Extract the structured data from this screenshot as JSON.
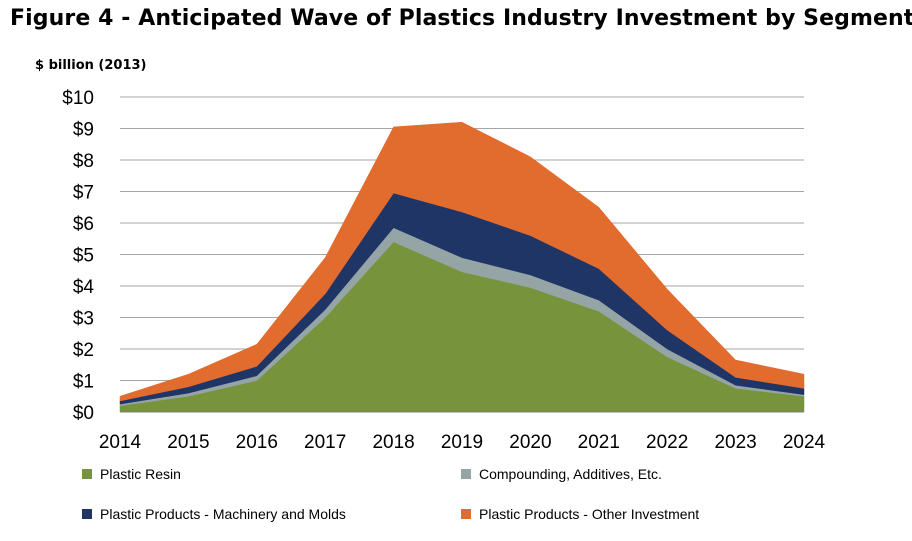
{
  "figure": {
    "title": "Figure 4 - Anticipated Wave of Plastics Industry Investment by Segment",
    "unit_label": "$ billion (2013)"
  },
  "chart_data": {
    "type": "area",
    "stacked": true,
    "title": "Figure 4 - Anticipated Wave of Plastics Industry Investment by Segment",
    "ylabel": "$ billion (2013)",
    "xlabel": "",
    "categories": [
      "2014",
      "2015",
      "2016",
      "2017",
      "2018",
      "2019",
      "2020",
      "2021",
      "2022",
      "2023",
      "2024"
    ],
    "ylim": [
      0,
      10
    ],
    "yticks": [
      "$0",
      "$1",
      "$2",
      "$3",
      "$4",
      "$5",
      "$6",
      "$7",
      "$8",
      "$9",
      "$10"
    ],
    "grid": true,
    "legend_position": "bottom",
    "series": [
      {
        "name": "Plastic Resin",
        "color": "#77933C",
        "values": [
          0.2,
          0.5,
          1.0,
          3.0,
          5.4,
          4.45,
          3.95,
          3.2,
          1.75,
          0.75,
          0.5
        ]
      },
      {
        "name": "Compounding, Additives, Etc.",
        "color": "#95A5A6",
        "values": [
          0.05,
          0.1,
          0.15,
          0.25,
          0.45,
          0.45,
          0.4,
          0.35,
          0.25,
          0.1,
          0.05
        ]
      },
      {
        "name": "Plastic Products - Machinery and Molds",
        "color": "#1F3566",
        "values": [
          0.1,
          0.2,
          0.3,
          0.5,
          1.1,
          1.45,
          1.25,
          1.0,
          0.6,
          0.25,
          0.2
        ]
      },
      {
        "name": "Plastic Products - Other Investment",
        "color": "#E26B2E",
        "values": [
          0.15,
          0.4,
          0.7,
          1.15,
          2.1,
          2.85,
          2.5,
          1.95,
          1.3,
          0.55,
          0.45
        ]
      }
    ]
  }
}
